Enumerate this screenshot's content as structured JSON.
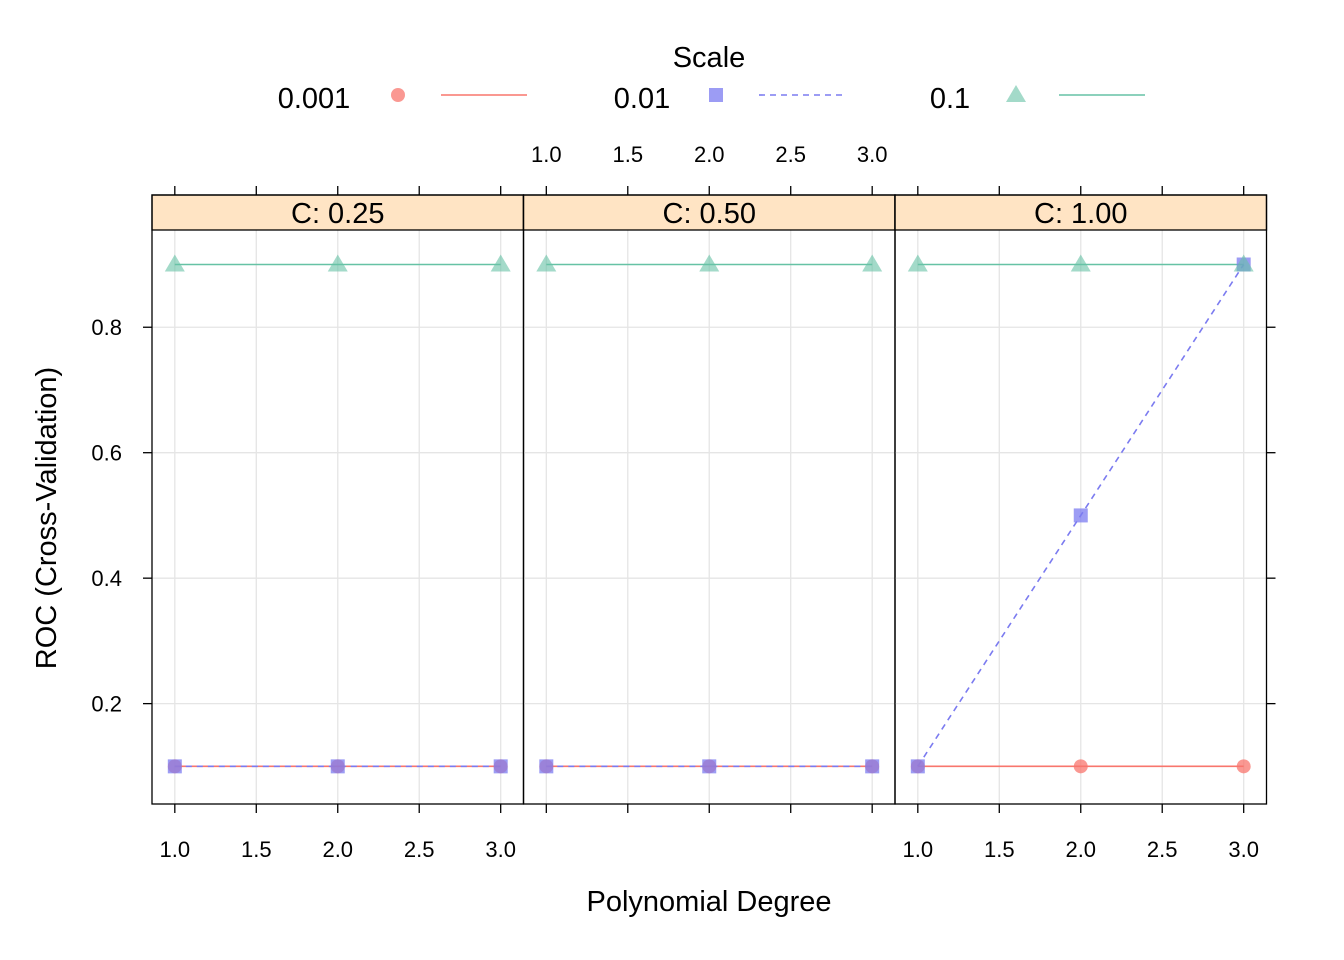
{
  "chart_data": {
    "type": "line",
    "xlabel": "Polynomial Degree",
    "ylabel": "ROC (Cross-Validation)",
    "legend": {
      "title": "Scale",
      "placement": "top",
      "entries": [
        {
          "label": "0.001",
          "color": "#F8766D",
          "marker": "circle",
          "line": "solid"
        },
        {
          "label": "0.01",
          "color": "#7B7BF0",
          "marker": "square",
          "line": "dashed"
        },
        {
          "label": "0.1",
          "color": "#66C2A5",
          "marker": "triangle",
          "line": "solid"
        }
      ]
    },
    "xlim": [
      0.86,
      3.14
    ],
    "ylim": [
      0.04,
      0.955
    ],
    "x_ticks": [
      "1.0",
      "1.5",
      "2.0",
      "2.5",
      "3.0"
    ],
    "y_ticks": [
      "0.2",
      "0.4",
      "0.6",
      "0.8"
    ],
    "grid": true,
    "panels": [
      {
        "strip": "C: 0.25",
        "x": [
          1,
          2,
          3
        ],
        "series": [
          {
            "name": "0.001",
            "values": [
              0.1,
              0.1,
              0.1
            ]
          },
          {
            "name": "0.01",
            "values": [
              0.1,
              0.1,
              0.1
            ]
          },
          {
            "name": "0.1",
            "values": [
              0.9,
              0.9,
              0.9
            ]
          }
        ]
      },
      {
        "strip": "C: 0.50",
        "x": [
          1,
          2,
          3
        ],
        "series": [
          {
            "name": "0.001",
            "values": [
              0.1,
              0.1,
              0.1
            ]
          },
          {
            "name": "0.01",
            "values": [
              0.1,
              0.1,
              0.1
            ]
          },
          {
            "name": "0.1",
            "values": [
              0.9,
              0.9,
              0.9
            ]
          }
        ]
      },
      {
        "strip": "C: 1.00",
        "x": [
          1,
          2,
          3
        ],
        "series": [
          {
            "name": "0.001",
            "values": [
              0.1,
              0.1,
              0.1
            ]
          },
          {
            "name": "0.01",
            "values": [
              0.1,
              0.5,
              0.9
            ]
          },
          {
            "name": "0.1",
            "values": [
              0.9,
              0.9,
              0.9
            ]
          }
        ]
      }
    ],
    "colors": {
      "strip_bg": "#FFE4C4",
      "grid": "#E5E5E5"
    }
  }
}
